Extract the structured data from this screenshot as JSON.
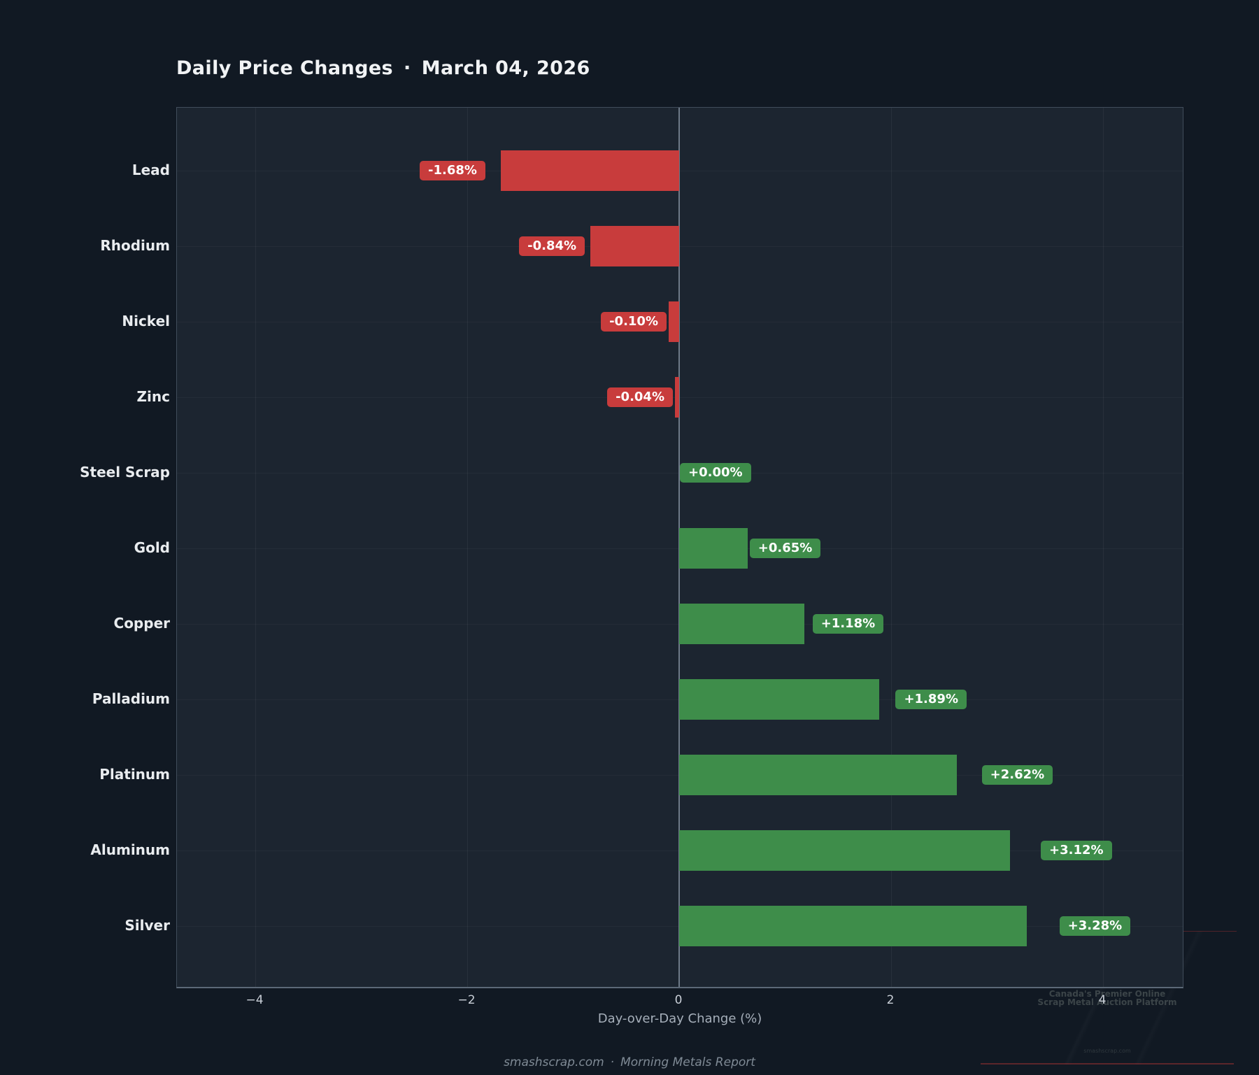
{
  "title": {
    "main": "Daily Price Changes",
    "separator": "·",
    "date": "March 04, 2026"
  },
  "chart_data": {
    "type": "bar",
    "orientation": "horizontal",
    "title": "Daily Price Changes · March 04, 2026",
    "categories": [
      "Lead",
      "Rhodium",
      "Nickel",
      "Zinc",
      "Steel Scrap",
      "Gold",
      "Copper",
      "Palladium",
      "Platinum",
      "Aluminum",
      "Silver"
    ],
    "values": [
      -1.68,
      -0.84,
      -0.1,
      -0.04,
      0.0,
      0.65,
      1.18,
      1.89,
      2.62,
      3.12,
      3.28
    ],
    "bar_labels": [
      "-1.68%",
      "-0.84%",
      "-0.10%",
      "-0.04%",
      "+0.00%",
      "+0.65%",
      "+1.18%",
      "+1.89%",
      "+2.62%",
      "+3.12%",
      "+3.28%"
    ],
    "xlabel": "Day-over-Day Change (%)",
    "x_tick_labels": [
      "−4",
      "−2",
      "0",
      "2",
      "4"
    ],
    "x_tick_values": [
      -4,
      -2,
      0,
      2,
      4
    ],
    "xlim": [
      -4.75,
      4.77
    ],
    "grid": true,
    "zero_line": true,
    "legend": null,
    "colors": {
      "positive": "#3e8d4a",
      "negative": "#c83c3c"
    }
  },
  "footer": {
    "site": "smashscrap.com",
    "separator": "·",
    "report": "Morning Metals Report"
  },
  "watermark": {
    "line1": "Canada's Premier Online",
    "line2": "Scrap Metal Auction Platform",
    "url": "smashscrap.com"
  }
}
